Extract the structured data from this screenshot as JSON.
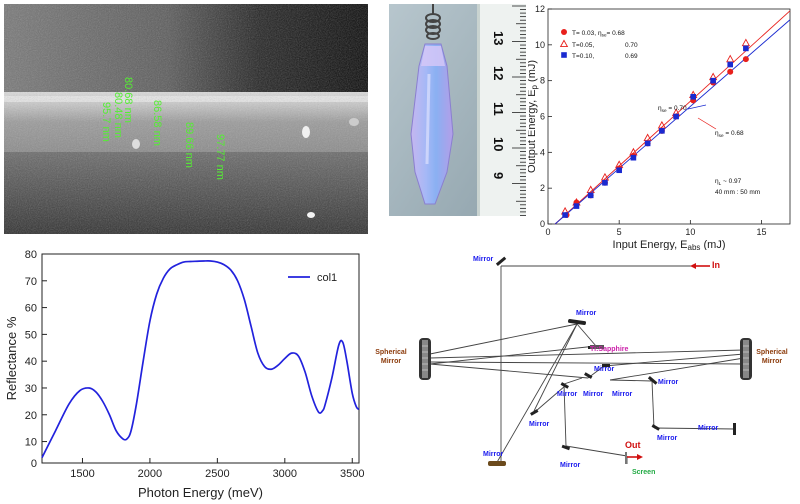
{
  "sem": {
    "labels": [
      "80.68 nm",
      "80.48 nm",
      "86.58 nm",
      "95.7 nm",
      "89.66 nm",
      "97.77 nm"
    ]
  },
  "ruler": {
    "labels": [
      "13",
      "12",
      "11",
      "10",
      "9"
    ]
  },
  "colors": {
    "red": "#e8201c",
    "blue": "#1a2ad0",
    "line_blue": "#2222dd",
    "green_text": "#55ee33",
    "mirror_blue": "#1a1aee",
    "spherical_brown": "#8b3a0a",
    "ti_magenta": "#cc22aa",
    "arrow_red": "#d01010",
    "screen_green": "#22aa44"
  },
  "chart_data": [
    {
      "type": "scatter",
      "xlabel_main": "Input Energy, E",
      "xlabel_sub": "abs",
      "xlabel_unit": "(mJ)",
      "ylabel_main": "Output Energy, E",
      "ylabel_sub": "p",
      "ylabel_unit": "(mJ)",
      "xlim": [
        0,
        17
      ],
      "ylim": [
        0,
        12
      ],
      "xticks": [
        0,
        5,
        10,
        15
      ],
      "yticks": [
        0,
        2,
        4,
        6,
        8,
        10,
        12
      ],
      "legend": [
        {
          "label": "T= 0.03,",
          "eta_label": "η",
          "eta_sub": "se",
          "eta_value": "= 0.68"
        },
        {
          "label": "T=0.05,",
          "value": "0.70"
        },
        {
          "label": "T=0.10,",
          "value": "0.69"
        }
      ],
      "annotations": {
        "a1_main": "η",
        "a1_sub": "se",
        "a1_val": "= 0.70",
        "a2_main": "η",
        "a2_sub": "se",
        "a2_val": "= 0.68",
        "a3_main": "η",
        "a3_sub": "L",
        "a3_val": "~ 0.97",
        "a4": "40 mm : 50 mm"
      },
      "series": [
        {
          "name": "T= 0.03",
          "marker": "circle",
          "x": [
            1.3,
            2.0,
            3.0,
            4.0,
            5.0,
            6.0,
            7.0,
            8.0,
            9.0,
            10.2,
            11.6,
            12.8,
            13.9
          ],
          "y": [
            0.5,
            1.2,
            1.6,
            2.3,
            3.1,
            3.8,
            4.5,
            5.2,
            6.0,
            6.9,
            7.9,
            8.5,
            9.2
          ]
        },
        {
          "name": "T=0.05",
          "marker": "triangle",
          "x": [
            1.2,
            2.0,
            3.0,
            4.0,
            5.0,
            6.0,
            7.0,
            8.0,
            9.0,
            10.2,
            11.6,
            12.8,
            13.9
          ],
          "y": [
            0.7,
            1.2,
            1.9,
            2.6,
            3.3,
            4.0,
            4.8,
            5.5,
            6.2,
            7.2,
            8.2,
            9.2,
            10.1
          ]
        },
        {
          "name": "T=0.10",
          "marker": "square",
          "x": [
            1.2,
            2.0,
            3.0,
            4.0,
            5.0,
            6.0,
            7.0,
            8.0,
            9.0,
            10.2,
            11.6,
            12.8,
            13.9
          ],
          "y": [
            0.5,
            1.0,
            1.6,
            2.3,
            3.0,
            3.7,
            4.5,
            5.2,
            6.0,
            7.1,
            8.0,
            8.9,
            9.8
          ]
        }
      ],
      "fits": [
        {
          "color": "red",
          "x": [
            0.5,
            17
          ],
          "y": [
            0,
            11.9
          ]
        },
        {
          "color": "blue",
          "x": [
            0.5,
            17
          ],
          "y": [
            0,
            11.4
          ]
        }
      ]
    },
    {
      "type": "line",
      "xlabel": "Photon Energy (meV)",
      "ylabel": "Reflectance %",
      "xlim": [
        1200,
        3550
      ],
      "ylim": [
        2,
        80
      ],
      "xticks": [
        1500,
        2000,
        2500,
        3000,
        3500
      ],
      "yticks": [
        0,
        10,
        20,
        30,
        40,
        50,
        60,
        70,
        80
      ],
      "legend": "col1",
      "series": [
        {
          "name": "col1",
          "x": [
            1200,
            1300,
            1400,
            1480,
            1550,
            1600,
            1650,
            1700,
            1750,
            1800,
            1830,
            1860,
            1900,
            1950,
            2000,
            2050,
            2100,
            2150,
            2200,
            2250,
            2300,
            2350,
            2400,
            2450,
            2500,
            2550,
            2600,
            2650,
            2700,
            2750,
            2800,
            2850,
            2900,
            2950,
            3000,
            3050,
            3100,
            3150,
            3200,
            3250,
            3280,
            3300,
            3350,
            3400,
            3430,
            3460,
            3500,
            3530,
            3550
          ],
          "y": [
            4,
            14,
            24,
            29,
            30,
            28.5,
            25,
            20,
            14,
            11,
            11,
            14,
            24,
            40,
            55,
            65,
            71,
            74.5,
            76,
            77,
            77.2,
            77.3,
            77.4,
            77.4,
            77,
            76,
            74,
            70,
            63,
            53,
            43,
            38,
            37,
            38.5,
            41,
            43,
            42,
            36,
            27,
            21,
            21.5,
            24,
            34,
            46,
            47,
            40,
            28,
            23,
            22
          ]
        }
      ]
    }
  ],
  "diagram": {
    "mirror_label": "Mirror",
    "spherical_mirror_line1": "Spherical",
    "spherical_mirror_line2": "Mirror",
    "ti_sapphire": "Ti:Sapphire",
    "in_label": "In",
    "out_label": "Out",
    "screen_label": "Screen"
  }
}
